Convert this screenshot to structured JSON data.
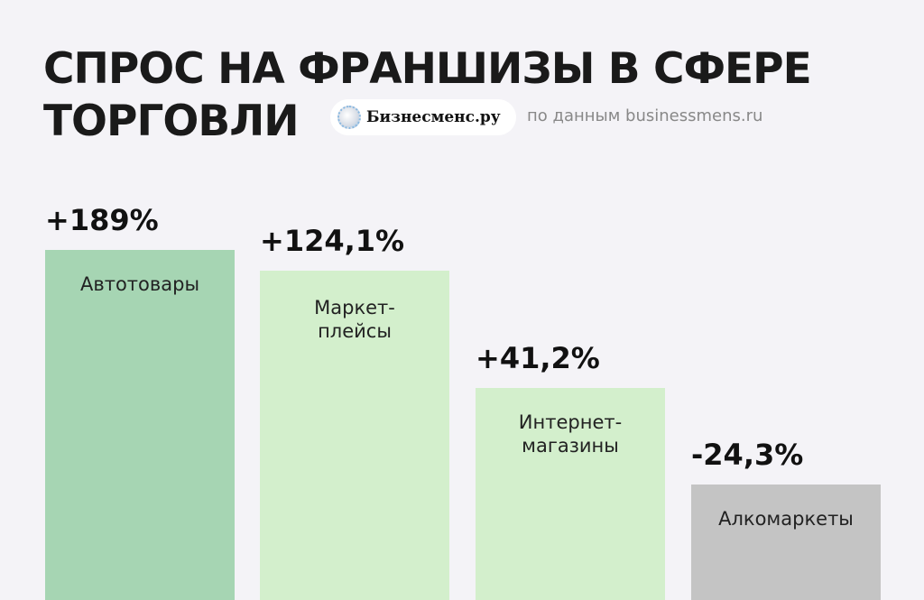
{
  "title_line1": "СПРОС НА ФРАНШИЗЫ В СФЕРЕ",
  "title_line2": "ТОРГОВЛИ",
  "brand": "Бизнесменс.ру",
  "source": "по данным businessmens.ru",
  "chart_data": {
    "type": "bar",
    "title": "СПРОС НА ФРАНШИЗЫ В СФЕРЕ ТОРГОВЛИ",
    "categories": [
      "Автотовары",
      "Маркет-\nплейсы",
      "Интернет-\nмагазины",
      "Алкомаркеты"
    ],
    "values": [
      189,
      124.1,
      41.2,
      -24.3
    ],
    "value_labels": [
      "+189%",
      "+124,1%",
      "+41,2%",
      "-24,3%"
    ],
    "unit": "%",
    "colors": [
      "#a6d5b3",
      "#d3efcc",
      "#d3efcc",
      "#c4c4c4"
    ]
  }
}
